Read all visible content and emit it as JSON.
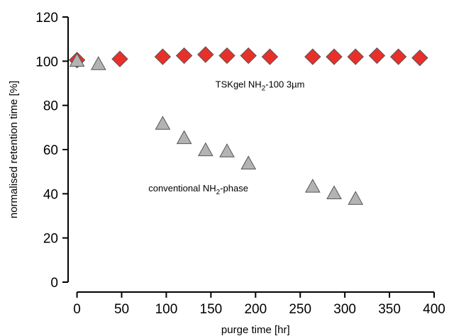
{
  "chart_data": {
    "type": "scatter",
    "title": "",
    "xlabel": "purge time [hr]",
    "ylabel": "normalised retention time [%]",
    "xlim": [
      -10,
      400
    ],
    "ylim": [
      0,
      120
    ],
    "xticks": [
      0,
      50,
      100,
      150,
      200,
      250,
      300,
      350,
      400
    ],
    "yticks": [
      0,
      20,
      40,
      60,
      80,
      100,
      120
    ],
    "grid": false,
    "legend": "none",
    "series": [
      {
        "marker": "diamond",
        "color": "#e8302a",
        "points": [
          {
            "x": 0,
            "y": 100.5
          },
          {
            "x": 48,
            "y": 101
          },
          {
            "x": 96,
            "y": 102
          },
          {
            "x": 120,
            "y": 102.5
          },
          {
            "x": 144,
            "y": 103
          },
          {
            "x": 168,
            "y": 102.5
          },
          {
            "x": 192,
            "y": 102.5
          },
          {
            "x": 216,
            "y": 102
          },
          {
            "x": 264,
            "y": 102
          },
          {
            "x": 288,
            "y": 102
          },
          {
            "x": 312,
            "y": 102
          },
          {
            "x": 336,
            "y": 102.5
          },
          {
            "x": 360,
            "y": 102
          },
          {
            "x": 384,
            "y": 101.5
          }
        ]
      },
      {
        "marker": "triangle",
        "color": "#b3b3b3",
        "points": [
          {
            "x": 0,
            "y": 100
          },
          {
            "x": 24,
            "y": 98.5
          },
          {
            "x": 96,
            "y": 71.5
          },
          {
            "x": 120,
            "y": 65
          },
          {
            "x": 144,
            "y": 59.5
          },
          {
            "x": 168,
            "y": 59
          },
          {
            "x": 192,
            "y": 53.5
          },
          {
            "x": 264,
            "y": 43
          },
          {
            "x": 288,
            "y": 40
          },
          {
            "x": 312,
            "y": 37.5
          }
        ]
      }
    ],
    "annotations": [
      {
        "base": "TSKgel NH",
        "sub": "2",
        "rest": "-100  3µm",
        "x": 155,
        "y": 88
      },
      {
        "base": "conventional NH",
        "sub": "2",
        "rest": "-phase",
        "x": 80,
        "y": 41
      }
    ]
  }
}
